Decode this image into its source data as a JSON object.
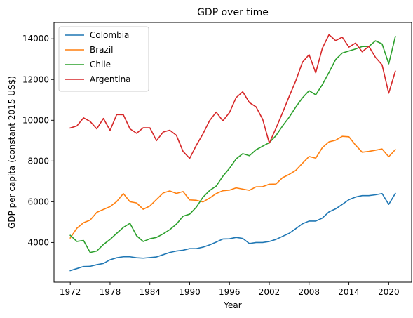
{
  "chart_data": {
    "type": "line",
    "title": "GDP over time",
    "xlabel": "Year",
    "ylabel": "GDP per capita (constant 2015 US$)",
    "xlim": [
      1969.55,
      2023.45
    ],
    "ylim": [
      2050,
      14800
    ],
    "xticks": [
      1972,
      1978,
      1984,
      1990,
      1996,
      2002,
      2008,
      2014,
      2020
    ],
    "yticks": [
      4000,
      6000,
      8000,
      10000,
      12000,
      14000
    ],
    "legend_position": "upper-left",
    "x": [
      1972,
      1973,
      1974,
      1975,
      1976,
      1977,
      1978,
      1979,
      1980,
      1981,
      1982,
      1983,
      1984,
      1985,
      1986,
      1987,
      1988,
      1989,
      1990,
      1991,
      1992,
      1993,
      1994,
      1995,
      1996,
      1997,
      1998,
      1999,
      2000,
      2001,
      2002,
      2003,
      2004,
      2005,
      2006,
      2007,
      2008,
      2009,
      2010,
      2011,
      2012,
      2013,
      2014,
      2015,
      2016,
      2017,
      2018,
      2019,
      2020,
      2021
    ],
    "series": [
      {
        "name": "Colombia",
        "color": "#1f77b4",
        "values": [
          2620,
          2720,
          2820,
          2830,
          2910,
          2970,
          3150,
          3250,
          3300,
          3300,
          3250,
          3230,
          3260,
          3290,
          3400,
          3510,
          3580,
          3620,
          3700,
          3700,
          3770,
          3880,
          4020,
          4170,
          4180,
          4250,
          4200,
          3950,
          4000,
          4000,
          4050,
          4150,
          4300,
          4450,
          4680,
          4920,
          5050,
          5050,
          5200,
          5500,
          5650,
          5870,
          6100,
          6230,
          6300,
          6300,
          6340,
          6400,
          5870,
          6410
        ]
      },
      {
        "name": "Brazil",
        "color": "#ff7f0e",
        "values": [
          4220,
          4700,
          4970,
          5100,
          5480,
          5620,
          5760,
          6010,
          6400,
          6000,
          5940,
          5630,
          5790,
          6110,
          6430,
          6530,
          6410,
          6500,
          6090,
          6070,
          5990,
          6180,
          6400,
          6540,
          6570,
          6680,
          6620,
          6560,
          6730,
          6740,
          6860,
          6870,
          7180,
          7340,
          7540,
          7890,
          8220,
          8140,
          8660,
          8940,
          9020,
          9210,
          9190,
          8780,
          8430,
          8470,
          8530,
          8590,
          8210,
          8560
        ]
      },
      {
        "name": "Chile",
        "color": "#2ca02c",
        "values": [
          4350,
          4050,
          4100,
          3510,
          3580,
          3900,
          4150,
          4450,
          4740,
          4940,
          4330,
          4050,
          4180,
          4250,
          4420,
          4630,
          4900,
          5290,
          5390,
          5730,
          6220,
          6550,
          6770,
          7250,
          7640,
          8100,
          8360,
          8260,
          8550,
          8730,
          8900,
          9240,
          9720,
          10150,
          10650,
          11100,
          11450,
          11250,
          11750,
          12350,
          12980,
          13300,
          13400,
          13500,
          13620,
          13620,
          13900,
          13750,
          12770,
          14110
        ]
      },
      {
        "name": "Argentina",
        "color": "#d62728",
        "values": [
          9620,
          9720,
          10120,
          9940,
          9580,
          10090,
          9500,
          10280,
          10270,
          9580,
          9360,
          9630,
          9630,
          9000,
          9420,
          9510,
          9260,
          8470,
          8130,
          8770,
          9330,
          9980,
          10400,
          9970,
          10380,
          11110,
          11400,
          10870,
          10660,
          10050,
          8880,
          9600,
          10370,
          11170,
          11940,
          12850,
          13220,
          12330,
          13540,
          14200,
          13910,
          14080,
          13590,
          13790,
          13360,
          13630,
          13090,
          12720,
          11330,
          12410
        ]
      }
    ]
  }
}
